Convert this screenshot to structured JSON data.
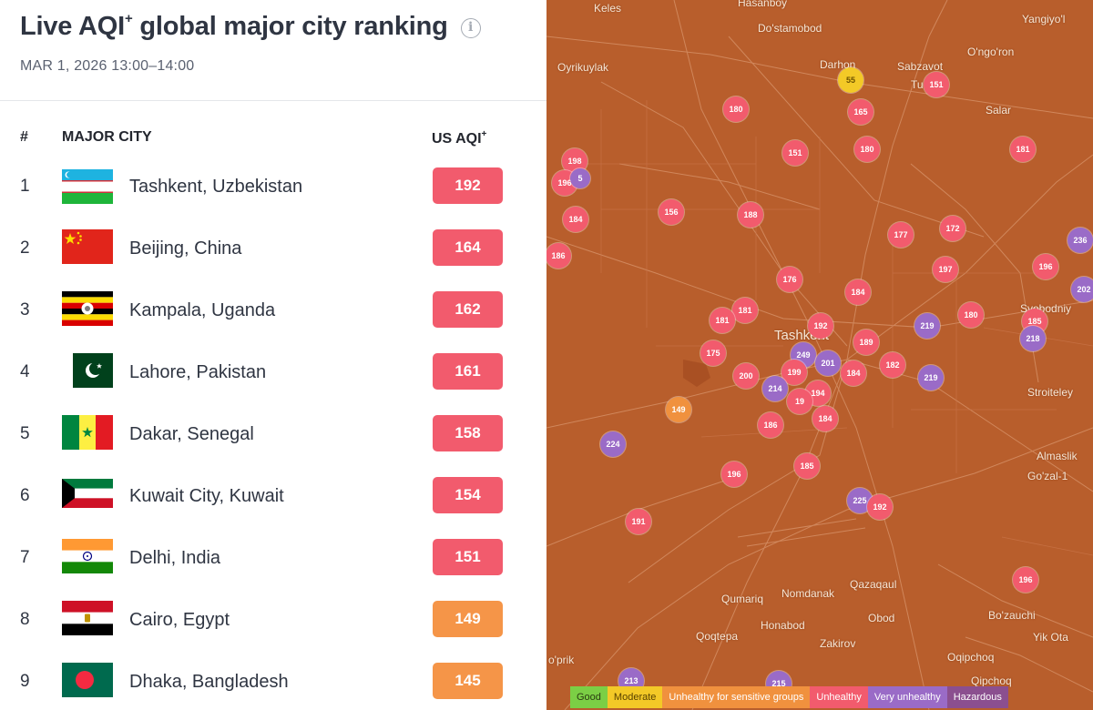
{
  "header": {
    "title": "Live AQI",
    "title_sup": "+",
    "title_rest": " global major city ranking",
    "info_icon": "info-icon",
    "subtitle": "MAR 1, 2026 13:00–14:00"
  },
  "table": {
    "col_rank": "#",
    "col_city": "MAJOR CITY",
    "col_aqi": "US AQI",
    "col_aqi_sup": "+",
    "rows": [
      {
        "rank": "1",
        "city": "Tashkent, Uzbekistan",
        "aqi": "192",
        "color": "#f25b6d",
        "flag": "uzbekistan-flag"
      },
      {
        "rank": "2",
        "city": "Beijing, China",
        "aqi": "164",
        "color": "#f25b6d",
        "flag": "china-flag"
      },
      {
        "rank": "3",
        "city": "Kampala, Uganda",
        "aqi": "162",
        "color": "#f25b6d",
        "flag": "uganda-flag"
      },
      {
        "rank": "4",
        "city": "Lahore, Pakistan",
        "aqi": "161",
        "color": "#f25b6d",
        "flag": "pakistan-flag"
      },
      {
        "rank": "5",
        "city": "Dakar, Senegal",
        "aqi": "158",
        "color": "#f25b6d",
        "flag": "senegal-flag"
      },
      {
        "rank": "6",
        "city": "Kuwait City, Kuwait",
        "aqi": "154",
        "color": "#f25b6d",
        "flag": "kuwait-flag"
      },
      {
        "rank": "7",
        "city": "Delhi, India",
        "aqi": "151",
        "color": "#f25b6d",
        "flag": "india-flag"
      },
      {
        "rank": "8",
        "city": "Cairo, Egypt",
        "aqi": "149",
        "color": "#f59548",
        "flag": "egypt-flag"
      },
      {
        "rank": "9",
        "city": "Dhaka, Bangladesh",
        "aqi": "145",
        "color": "#f59548",
        "flag": "bangladesh-flag"
      }
    ]
  },
  "map": {
    "places": {
      "keles": "Keles",
      "hasanboy": "Hasanboy",
      "dostamobod": "Do'stamobod",
      "yangiyol": "Yangiyo'l",
      "ongoron": "O'ngo'ron",
      "oyrikuylak": "Oyrikuylak",
      "darhon": "Darhon",
      "sabzavot": "Sabzavot",
      "tu": "Tu",
      "salar": "Salar",
      "tashkent": "Tashkent",
      "svobodniy": "Svobodniy",
      "stroiteley": "Stroiteley",
      "almaslik": "Almaslik",
      "gozal": "Go'zal-1",
      "qazaqaul": "Qazaqaul",
      "qumariq": "Qumariq",
      "nomdanak": "Nomdanak",
      "obod": "Obod",
      "bozauchi": "Bo'zauchi",
      "honabod": "Honabod",
      "yiktota": "Yik Ota",
      "qoqtepa": "Qoqtepa",
      "zakirov": "Zakirov",
      "oqipchoq": "Oqipchoq",
      "qipchoq": "Qipchoq",
      "oprik": "o'prik"
    },
    "markers": [
      {
        "v": "55",
        "c": "moderate"
      },
      {
        "v": "151",
        "c": "unhealthy"
      },
      {
        "v": "180",
        "c": "unhealthy"
      },
      {
        "v": "165",
        "c": "unhealthy"
      },
      {
        "v": "151",
        "c": "unhealthy"
      },
      {
        "v": "180",
        "c": "unhealthy"
      },
      {
        "v": "181",
        "c": "unhealthy"
      },
      {
        "v": "198",
        "c": "unhealthy"
      },
      {
        "v": "196",
        "c": "unhealthy"
      },
      {
        "v": "184",
        "c": "unhealthy"
      },
      {
        "v": "156",
        "c": "unhealthy"
      },
      {
        "v": "188",
        "c": "unhealthy"
      },
      {
        "v": "186",
        "c": "unhealthy"
      },
      {
        "v": "177",
        "c": "unhealthy"
      },
      {
        "v": "172",
        "c": "unhealthy"
      },
      {
        "v": "236",
        "c": "very"
      },
      {
        "v": "196",
        "c": "unhealthy"
      },
      {
        "v": "197",
        "c": "unhealthy"
      },
      {
        "v": "202",
        "c": "very"
      },
      {
        "v": "176",
        "c": "unhealthy"
      },
      {
        "v": "184",
        "c": "unhealthy"
      },
      {
        "v": "181",
        "c": "unhealthy"
      },
      {
        "v": "181",
        "c": "unhealthy"
      },
      {
        "v": "192",
        "c": "unhealthy"
      },
      {
        "v": "219",
        "c": "very"
      },
      {
        "v": "180",
        "c": "unhealthy"
      },
      {
        "v": "185",
        "c": "unhealthy"
      },
      {
        "v": "218",
        "c": "very"
      },
      {
        "v": "175",
        "c": "unhealthy"
      },
      {
        "v": "249",
        "c": "very"
      },
      {
        "v": "189",
        "c": "unhealthy"
      },
      {
        "v": "201",
        "c": "very"
      },
      {
        "v": "182",
        "c": "unhealthy"
      },
      {
        "v": "200",
        "c": "unhealthy"
      },
      {
        "v": "199",
        "c": "unhealthy"
      },
      {
        "v": "184",
        "c": "unhealthy"
      },
      {
        "v": "219",
        "c": "very"
      },
      {
        "v": "214",
        "c": "very"
      },
      {
        "v": "194",
        "c": "unhealthy"
      },
      {
        "v": "19",
        "c": "unhealthy"
      },
      {
        "v": "149",
        "c": "sensitive"
      },
      {
        "v": "186",
        "c": "unhealthy"
      },
      {
        "v": "184",
        "c": "unhealthy"
      },
      {
        "v": "224",
        "c": "very"
      },
      {
        "v": "185",
        "c": "unhealthy"
      },
      {
        "v": "196",
        "c": "unhealthy"
      },
      {
        "v": "225",
        "c": "very"
      },
      {
        "v": "192",
        "c": "unhealthy"
      },
      {
        "v": "191",
        "c": "unhealthy"
      },
      {
        "v": "196",
        "c": "unhealthy"
      },
      {
        "v": "213",
        "c": "very"
      },
      {
        "v": "215",
        "c": "very"
      },
      {
        "v": "5",
        "c": "very"
      }
    ],
    "legend": [
      {
        "label": "Good",
        "color": "#7bcf45"
      },
      {
        "label": "Moderate",
        "color": "#f3c927"
      },
      {
        "label": "Unhealthy for sensitive groups",
        "color": "#f0913e"
      },
      {
        "label": "Unhealthy",
        "color": "#f25b6d"
      },
      {
        "label": "Very unhealthy",
        "color": "#9a6bc7"
      },
      {
        "label": "Hazardous",
        "color": "#8b4f8f"
      }
    ]
  }
}
